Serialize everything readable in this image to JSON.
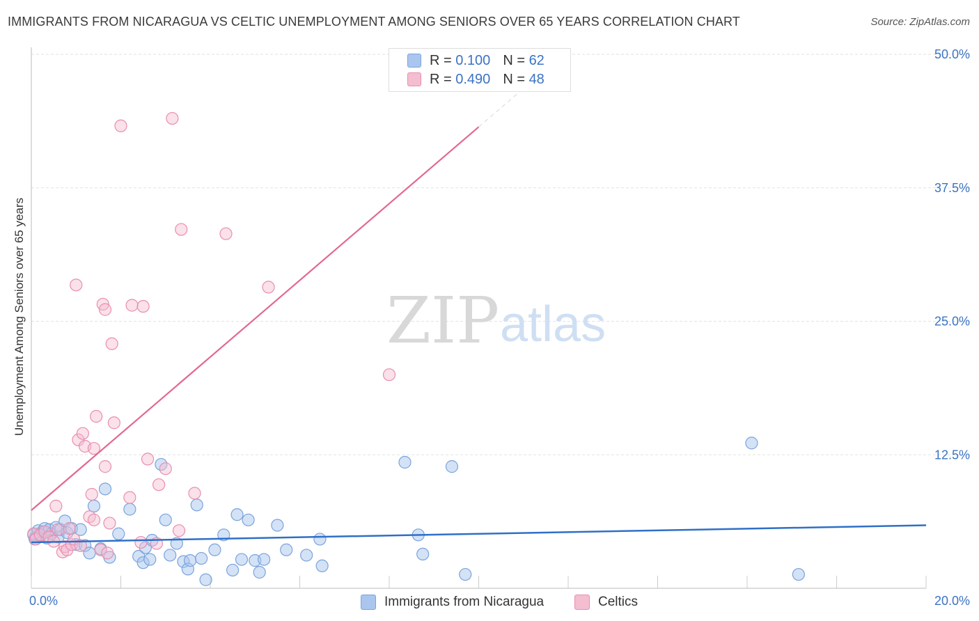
{
  "title": "IMMIGRANTS FROM NICARAGUA VS CELTIC UNEMPLOYMENT AMONG SENIORS OVER 65 YEARS CORRELATION CHART",
  "source": "Source: ZipAtlas.com",
  "watermark": {
    "zip": "ZIP",
    "atlas": "atlas"
  },
  "legend": {
    "r_label": "R =",
    "n_label": "N =",
    "rows": [
      {
        "r": "0.100",
        "n": "62"
      },
      {
        "r": "0.490",
        "n": "48"
      }
    ]
  },
  "bottom_legend": {
    "series1": "Immigrants from Nicaragua",
    "series2": "Celtics"
  },
  "colors": {
    "blue_fill": "#aac6ee",
    "blue_stroke": "#7aa3dc",
    "blue_line": "#2f6fc7",
    "pink_fill": "#f4bdd0",
    "pink_stroke": "#e98eae",
    "pink_line": "#e2688f",
    "axis_label": "#3b73c4"
  },
  "chart_data": {
    "type": "scatter",
    "title": "IMMIGRANTS FROM NICARAGUA VS CELTIC UNEMPLOYMENT AMONG SENIORS OVER 65 YEARS CORRELATION CHART",
    "xlabel": "",
    "ylabel": "Unemployment Among Seniors over 65 years",
    "xlim": [
      0,
      20
    ],
    "ylim": [
      0,
      50
    ],
    "x_tick_labels": [
      "0.0%",
      "20.0%"
    ],
    "y_ticks": [
      12.5,
      25.0,
      37.5,
      50.0
    ],
    "y_tick_labels": [
      "12.5%",
      "25.0%",
      "37.5%",
      "50.0%"
    ],
    "grid": true,
    "series": [
      {
        "name": "Immigrants from Nicaragua",
        "R": 0.1,
        "N": 62,
        "trend": {
          "x": [
            0,
            20
          ],
          "y": [
            4.3,
            5.9
          ]
        },
        "points": [
          [
            0.05,
            5.0
          ],
          [
            0.1,
            4.8
          ],
          [
            0.15,
            5.4
          ],
          [
            0.2,
            4.9
          ],
          [
            0.25,
            5.3
          ],
          [
            0.3,
            5.6
          ],
          [
            0.35,
            4.7
          ],
          [
            0.4,
            5.5
          ],
          [
            0.45,
            5.1
          ],
          [
            0.55,
            5.7
          ],
          [
            0.6,
            4.8
          ],
          [
            0.65,
            5.5
          ],
          [
            0.75,
            6.3
          ],
          [
            0.8,
            5.2
          ],
          [
            0.9,
            5.6
          ],
          [
            1.0,
            4.1
          ],
          [
            1.1,
            5.5
          ],
          [
            1.2,
            4.0
          ],
          [
            1.3,
            3.3
          ],
          [
            1.4,
            7.7
          ],
          [
            1.55,
            3.7
          ],
          [
            1.65,
            9.3
          ],
          [
            1.75,
            2.9
          ],
          [
            1.95,
            5.1
          ],
          [
            2.2,
            7.4
          ],
          [
            2.4,
            3.0
          ],
          [
            2.5,
            2.4
          ],
          [
            2.55,
            3.8
          ],
          [
            2.65,
            2.7
          ],
          [
            2.7,
            4.5
          ],
          [
            2.9,
            11.6
          ],
          [
            3.0,
            6.4
          ],
          [
            3.1,
            3.1
          ],
          [
            3.25,
            4.2
          ],
          [
            3.4,
            2.5
          ],
          [
            3.5,
            1.8
          ],
          [
            3.55,
            2.6
          ],
          [
            3.7,
            7.8
          ],
          [
            3.8,
            2.8
          ],
          [
            3.9,
            0.8
          ],
          [
            4.1,
            3.6
          ],
          [
            4.3,
            5.0
          ],
          [
            4.5,
            1.7
          ],
          [
            4.6,
            6.9
          ],
          [
            4.7,
            2.7
          ],
          [
            4.85,
            6.4
          ],
          [
            5.0,
            2.6
          ],
          [
            5.1,
            1.5
          ],
          [
            5.2,
            2.7
          ],
          [
            5.5,
            5.9
          ],
          [
            5.7,
            3.6
          ],
          [
            6.15,
            3.1
          ],
          [
            6.45,
            4.6
          ],
          [
            6.5,
            2.1
          ],
          [
            8.35,
            11.8
          ],
          [
            8.65,
            5.0
          ],
          [
            8.75,
            3.2
          ],
          [
            9.4,
            11.4
          ],
          [
            9.7,
            1.3
          ],
          [
            16.1,
            13.6
          ],
          [
            17.15,
            1.3
          ],
          [
            0.08,
            4.6
          ]
        ]
      },
      {
        "name": "Celtics",
        "R": 0.49,
        "N": 48,
        "trend": {
          "x": [
            0,
            10
          ],
          "y": [
            7.3,
            43.2
          ]
        },
        "trend_dashed": {
          "x": [
            10,
            11.5
          ],
          "y": [
            43.2,
            48.6
          ]
        },
        "points": [
          [
            0.05,
            5.1
          ],
          [
            0.1,
            4.6
          ],
          [
            0.2,
            5.0
          ],
          [
            0.3,
            5.3
          ],
          [
            0.4,
            4.8
          ],
          [
            0.5,
            4.4
          ],
          [
            0.55,
            7.7
          ],
          [
            0.6,
            5.5
          ],
          [
            0.7,
            3.4
          ],
          [
            0.75,
            3.9
          ],
          [
            0.8,
            3.6
          ],
          [
            0.85,
            5.6
          ],
          [
            0.9,
            4.1
          ],
          [
            0.95,
            4.6
          ],
          [
            1.0,
            28.4
          ],
          [
            1.05,
            13.9
          ],
          [
            1.1,
            4.0
          ],
          [
            1.15,
            14.5
          ],
          [
            1.2,
            13.3
          ],
          [
            1.3,
            6.7
          ],
          [
            1.35,
            8.8
          ],
          [
            1.4,
            6.4
          ],
          [
            1.4,
            13.1
          ],
          [
            1.45,
            16.1
          ],
          [
            1.55,
            3.6
          ],
          [
            1.6,
            26.6
          ],
          [
            1.65,
            11.4
          ],
          [
            1.65,
            26.1
          ],
          [
            1.7,
            3.3
          ],
          [
            1.75,
            6.1
          ],
          [
            1.8,
            22.9
          ],
          [
            1.85,
            15.5
          ],
          [
            2.0,
            43.3
          ],
          [
            2.2,
            8.5
          ],
          [
            2.25,
            26.5
          ],
          [
            2.5,
            26.4
          ],
          [
            2.6,
            12.1
          ],
          [
            2.8,
            4.2
          ],
          [
            2.85,
            9.7
          ],
          [
            3.0,
            11.2
          ],
          [
            3.15,
            44.0
          ],
          [
            3.3,
            5.4
          ],
          [
            3.35,
            33.6
          ],
          [
            3.65,
            8.9
          ],
          [
            4.35,
            33.2
          ],
          [
            5.3,
            28.2
          ],
          [
            8.0,
            20.0
          ],
          [
            2.45,
            4.3
          ]
        ]
      }
    ]
  }
}
